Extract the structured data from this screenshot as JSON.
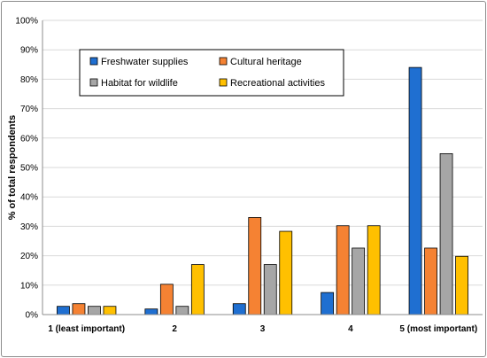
{
  "chart_data": {
    "type": "bar",
    "title": "",
    "xlabel": "",
    "ylabel": "% of total respondents",
    "ylim": [
      0,
      100
    ],
    "yticks": [
      "0%",
      "10%",
      "20%",
      "30%",
      "40%",
      "50%",
      "60%",
      "70%",
      "80%",
      "90%",
      "100%"
    ],
    "grid": true,
    "legend_position": "top-left",
    "categories": [
      "1 (least important)",
      "2",
      "3",
      "4",
      "5 (most important)"
    ],
    "series": [
      {
        "name": "Freshwater supplies",
        "color": "#1f6fd1",
        "values": [
          2.8,
          1.9,
          3.7,
          7.5,
          84.0
        ]
      },
      {
        "name": "Cultural heritage",
        "color": "#f58233",
        "values": [
          3.7,
          10.3,
          33.0,
          30.2,
          22.6
        ]
      },
      {
        "name": "Habitat for wildlife",
        "color": "#a6a6a6",
        "values": [
          2.8,
          2.8,
          17.0,
          22.6,
          54.7
        ]
      },
      {
        "name": "Recreational activities",
        "color": "#ffc000",
        "values": [
          2.8,
          17.0,
          28.3,
          30.2,
          19.8
        ]
      }
    ]
  }
}
